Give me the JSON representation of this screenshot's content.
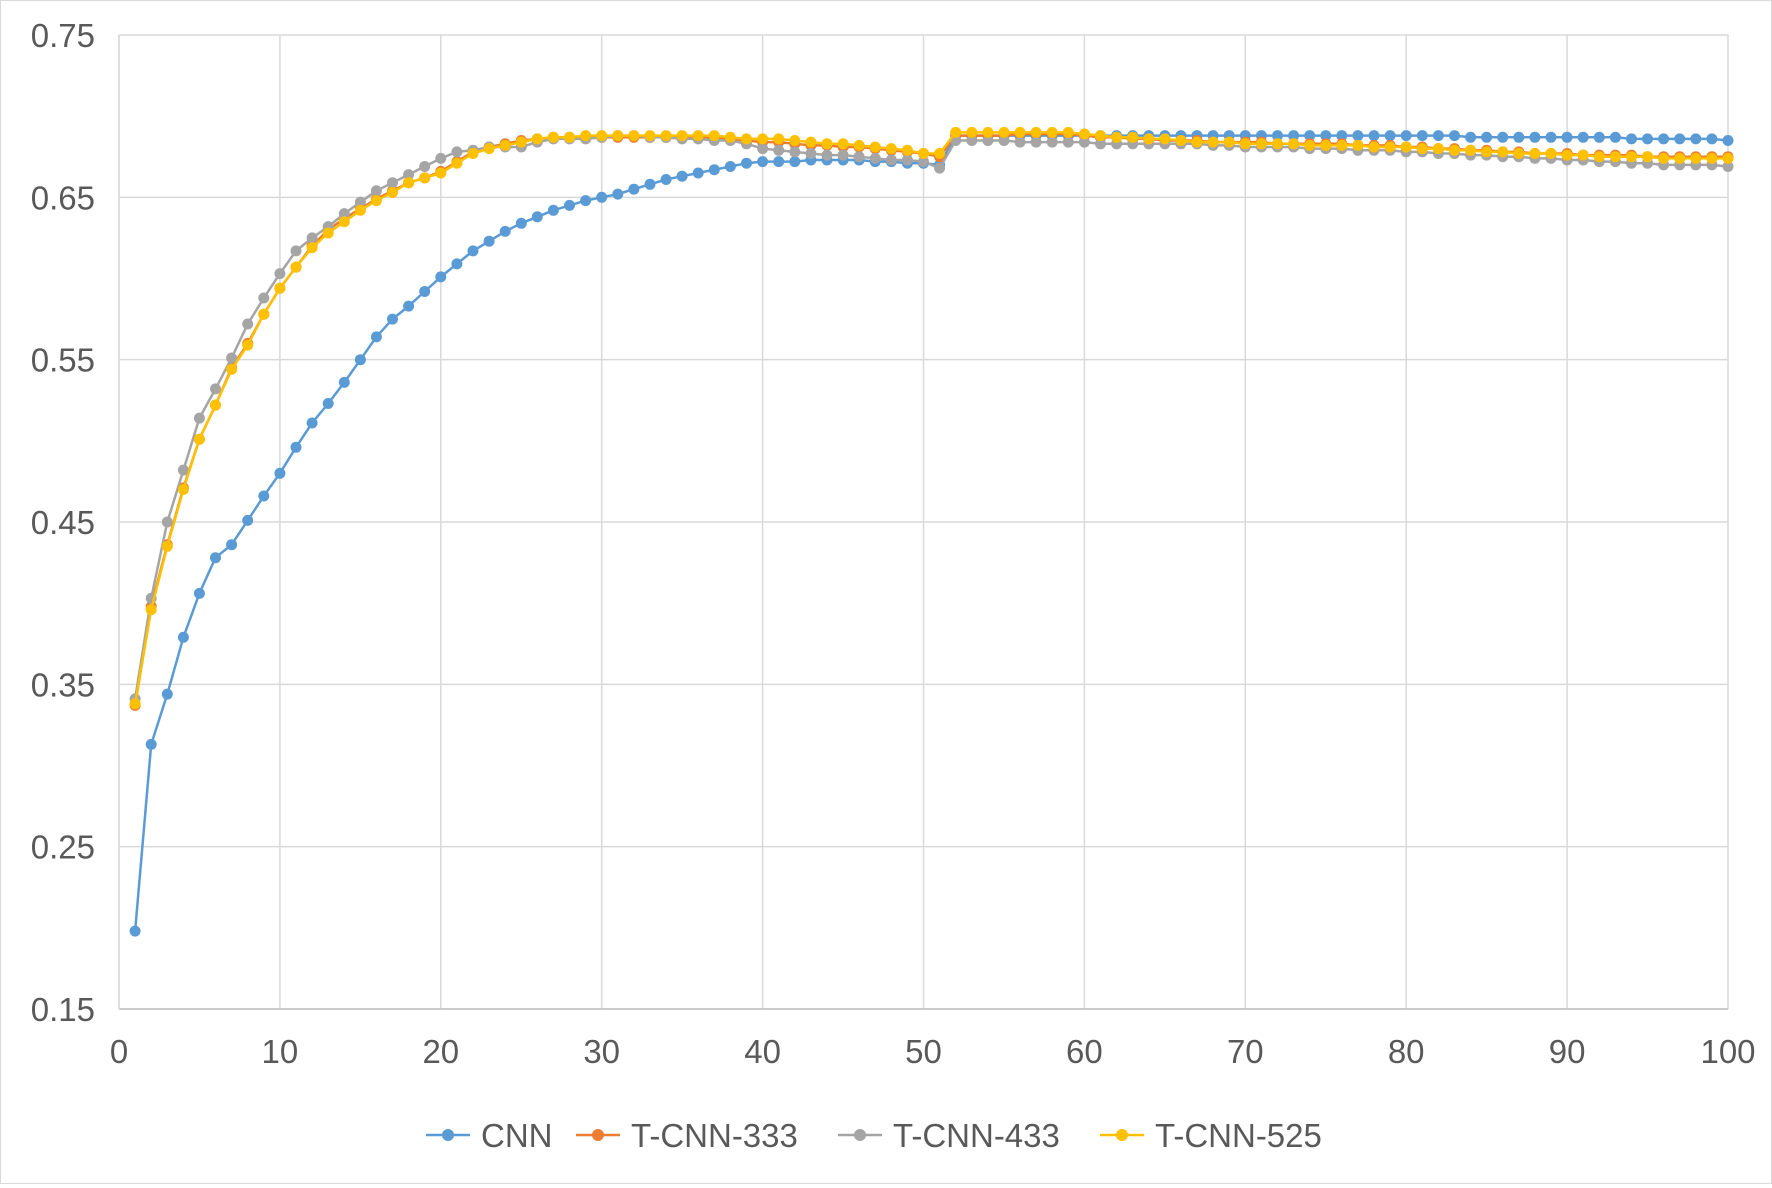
{
  "chart_data": {
    "type": "line",
    "title": "",
    "xlabel": "",
    "ylabel": "",
    "xlim": [
      0,
      100
    ],
    "ylim": [
      0.15,
      0.75
    ],
    "x_ticks": [
      "0",
      "10",
      "20",
      "30",
      "40",
      "50",
      "60",
      "70",
      "80",
      "90",
      "100"
    ],
    "y_ticks": [
      "0.15",
      "0.25",
      "0.35",
      "0.45",
      "0.55",
      "0.65",
      "0.75"
    ],
    "grid": true,
    "legend_position": "bottom",
    "x": [
      1,
      2,
      3,
      4,
      5,
      6,
      7,
      8,
      9,
      10,
      11,
      12,
      13,
      14,
      15,
      16,
      17,
      18,
      19,
      20,
      21,
      22,
      23,
      24,
      25,
      26,
      27,
      28,
      29,
      30,
      31,
      32,
      33,
      34,
      35,
      36,
      37,
      38,
      39,
      40,
      41,
      42,
      43,
      44,
      45,
      46,
      47,
      48,
      49,
      50,
      51,
      52,
      53,
      54,
      55,
      56,
      57,
      58,
      59,
      60,
      61,
      62,
      63,
      64,
      65,
      66,
      67,
      68,
      69,
      70,
      71,
      72,
      73,
      74,
      75,
      76,
      77,
      78,
      79,
      80,
      81,
      82,
      83,
      84,
      85,
      86,
      87,
      88,
      89,
      90,
      91,
      92,
      93,
      94,
      95,
      96,
      97,
      98,
      99,
      100
    ],
    "series": [
      {
        "name": "CNN",
        "color": "#5b9bd5",
        "values": [
          0.198,
          0.313,
          0.344,
          0.379,
          0.406,
          0.428,
          0.436,
          0.451,
          0.466,
          0.48,
          0.496,
          0.511,
          0.523,
          0.536,
          0.55,
          0.564,
          0.575,
          0.583,
          0.592,
          0.601,
          0.609,
          0.617,
          0.623,
          0.629,
          0.634,
          0.638,
          0.642,
          0.645,
          0.648,
          0.65,
          0.652,
          0.655,
          0.658,
          0.661,
          0.663,
          0.665,
          0.667,
          0.669,
          0.671,
          0.672,
          0.672,
          0.672,
          0.673,
          0.673,
          0.673,
          0.673,
          0.672,
          0.672,
          0.671,
          0.671,
          0.67,
          0.688,
          0.688,
          0.688,
          0.688,
          0.688,
          0.688,
          0.688,
          0.688,
          0.688,
          0.688,
          0.688,
          0.688,
          0.688,
          0.688,
          0.688,
          0.688,
          0.688,
          0.688,
          0.688,
          0.688,
          0.688,
          0.688,
          0.688,
          0.688,
          0.688,
          0.688,
          0.688,
          0.688,
          0.688,
          0.688,
          0.688,
          0.688,
          0.687,
          0.687,
          0.687,
          0.687,
          0.687,
          0.687,
          0.687,
          0.687,
          0.687,
          0.687,
          0.686,
          0.686,
          0.686,
          0.686,
          0.686,
          0.686,
          0.685
        ]
      },
      {
        "name": "T-CNN-333",
        "color": "#ed7d31",
        "values": [
          0.337,
          0.398,
          0.436,
          0.471,
          0.501,
          0.522,
          0.545,
          0.56,
          0.578,
          0.594,
          0.607,
          0.62,
          0.63,
          0.637,
          0.643,
          0.649,
          0.654,
          0.659,
          0.662,
          0.666,
          0.672,
          0.678,
          0.681,
          0.683,
          0.685,
          0.686,
          0.687,
          0.687,
          0.687,
          0.687,
          0.687,
          0.687,
          0.687,
          0.687,
          0.687,
          0.687,
          0.687,
          0.686,
          0.685,
          0.684,
          0.684,
          0.683,
          0.682,
          0.682,
          0.681,
          0.681,
          0.68,
          0.679,
          0.678,
          0.677,
          0.675,
          0.688,
          0.688,
          0.688,
          0.688,
          0.689,
          0.689,
          0.689,
          0.689,
          0.688,
          0.687,
          0.687,
          0.686,
          0.686,
          0.685,
          0.685,
          0.685,
          0.684,
          0.684,
          0.684,
          0.684,
          0.683,
          0.683,
          0.683,
          0.683,
          0.683,
          0.682,
          0.682,
          0.682,
          0.681,
          0.681,
          0.68,
          0.68,
          0.679,
          0.679,
          0.678,
          0.678,
          0.677,
          0.677,
          0.677,
          0.676,
          0.676,
          0.676,
          0.676,
          0.675,
          0.675,
          0.675,
          0.675,
          0.675,
          0.675
        ]
      },
      {
        "name": "T-CNN-433",
        "color": "#a5a5a5",
        "values": [
          0.341,
          0.403,
          0.45,
          0.482,
          0.514,
          0.532,
          0.551,
          0.572,
          0.588,
          0.603,
          0.617,
          0.625,
          0.632,
          0.64,
          0.647,
          0.654,
          0.659,
          0.664,
          0.669,
          0.674,
          0.678,
          0.679,
          0.681,
          0.681,
          0.681,
          0.684,
          0.686,
          0.686,
          0.686,
          0.687,
          0.688,
          0.688,
          0.687,
          0.687,
          0.686,
          0.686,
          0.685,
          0.685,
          0.683,
          0.68,
          0.679,
          0.678,
          0.677,
          0.676,
          0.676,
          0.675,
          0.674,
          0.673,
          0.673,
          0.672,
          0.668,
          0.685,
          0.685,
          0.685,
          0.685,
          0.684,
          0.684,
          0.684,
          0.684,
          0.684,
          0.683,
          0.683,
          0.683,
          0.683,
          0.683,
          0.683,
          0.683,
          0.682,
          0.682,
          0.681,
          0.681,
          0.681,
          0.681,
          0.68,
          0.68,
          0.68,
          0.679,
          0.679,
          0.679,
          0.678,
          0.678,
          0.677,
          0.677,
          0.676,
          0.676,
          0.675,
          0.675,
          0.674,
          0.674,
          0.673,
          0.673,
          0.672,
          0.672,
          0.671,
          0.671,
          0.67,
          0.67,
          0.67,
          0.67,
          0.669
        ]
      },
      {
        "name": "T-CNN-525",
        "color": "#ffc000",
        "values": [
          0.338,
          0.396,
          0.435,
          0.47,
          0.501,
          0.522,
          0.544,
          0.559,
          0.578,
          0.594,
          0.607,
          0.619,
          0.628,
          0.635,
          0.642,
          0.648,
          0.653,
          0.659,
          0.662,
          0.665,
          0.671,
          0.677,
          0.68,
          0.682,
          0.684,
          0.686,
          0.687,
          0.687,
          0.688,
          0.688,
          0.688,
          0.688,
          0.688,
          0.688,
          0.688,
          0.688,
          0.688,
          0.687,
          0.686,
          0.686,
          0.686,
          0.685,
          0.684,
          0.683,
          0.683,
          0.682,
          0.681,
          0.68,
          0.679,
          0.677,
          0.677,
          0.69,
          0.69,
          0.69,
          0.69,
          0.69,
          0.69,
          0.69,
          0.69,
          0.689,
          0.688,
          0.687,
          0.687,
          0.686,
          0.686,
          0.685,
          0.684,
          0.684,
          0.684,
          0.683,
          0.683,
          0.683,
          0.683,
          0.682,
          0.682,
          0.682,
          0.682,
          0.681,
          0.681,
          0.681,
          0.68,
          0.68,
          0.679,
          0.679,
          0.678,
          0.678,
          0.677,
          0.677,
          0.677,
          0.676,
          0.676,
          0.675,
          0.675,
          0.675,
          0.675,
          0.674,
          0.674,
          0.674,
          0.674,
          0.674
        ]
      }
    ]
  }
}
